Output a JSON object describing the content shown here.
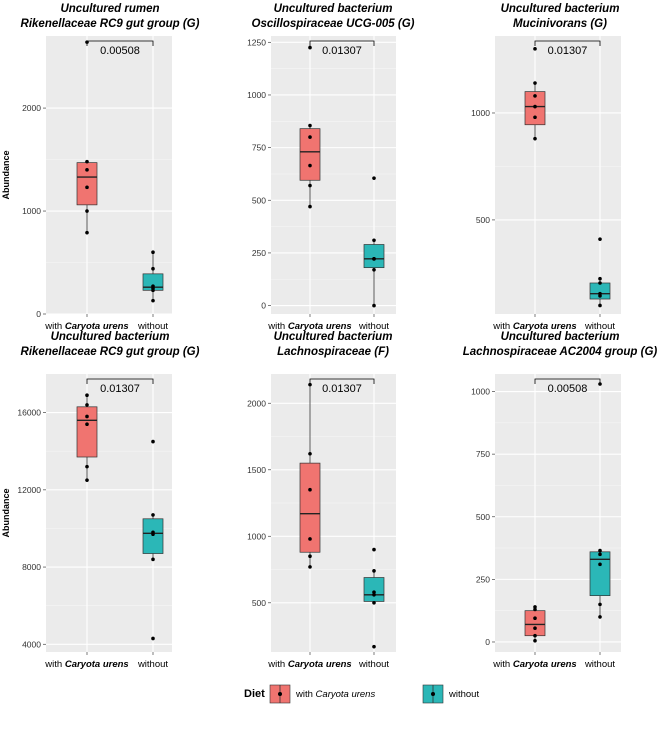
{
  "legend": {
    "title": "Diet",
    "items": [
      {
        "prefix": "with ",
        "italic": "Caryota urens",
        "color": "#f07470"
      },
      {
        "prefix": "without",
        "italic": "",
        "color": "#2bb7b7"
      }
    ]
  },
  "chart_data": [
    {
      "type": "box",
      "title_lines": [
        "Uncultured rumen",
        "Rikenellaceae RC9 gut group (G)"
      ],
      "ylabel": "Abundance",
      "ylim": [
        0,
        2700
      ],
      "yticks": [
        0,
        1000,
        2000
      ],
      "categories": [
        "with Caryota urens",
        "without"
      ],
      "pvalue": "0.00508",
      "boxes": [
        {
          "group": "with Caryota urens",
          "min": 790,
          "q1": 1060,
          "median": 1330,
          "q3": 1470,
          "max": 1480,
          "points": [
            2640,
            1480,
            1400,
            1230,
            1000,
            790
          ]
        },
        {
          "group": "without",
          "min": 130,
          "q1": 230,
          "median": 260,
          "q3": 390,
          "max": 600,
          "points": [
            600,
            440,
            270,
            250,
            230,
            130
          ]
        }
      ]
    },
    {
      "type": "box",
      "title_lines": [
        "Uncultured bacterium",
        "Oscillospiraceae UCG-005 (G)"
      ],
      "ylabel": "",
      "ylim": [
        -40,
        1280
      ],
      "yticks": [
        0,
        250,
        500,
        750,
        1000,
        1250
      ],
      "categories": [
        "with Caryota urens",
        "without"
      ],
      "pvalue": "0.01307",
      "boxes": [
        {
          "group": "with Caryota urens",
          "min": 470,
          "q1": 595,
          "median": 730,
          "q3": 840,
          "max": 855,
          "points": [
            1225,
            855,
            800,
            665,
            570,
            470
          ]
        },
        {
          "group": "without",
          "min": 0,
          "q1": 180,
          "median": 222,
          "q3": 290,
          "max": 310,
          "points": [
            605,
            310,
            222,
            222,
            170,
            0
          ]
        }
      ]
    },
    {
      "type": "box",
      "title_lines": [
        "Uncultured bacterium",
        "Mucinivorans (G)"
      ],
      "ylabel": "",
      "ylim": [
        60,
        1360
      ],
      "yticks": [
        500,
        1000
      ],
      "categories": [
        "with Caryota urens",
        "without"
      ],
      "pvalue": "0.01307",
      "boxes": [
        {
          "group": "with Caryota urens",
          "min": 880,
          "q1": 945,
          "median": 1030,
          "q3": 1100,
          "max": 1140,
          "points": [
            1300,
            1140,
            1080,
            1030,
            980,
            880
          ]
        },
        {
          "group": "without",
          "min": 100,
          "q1": 130,
          "median": 155,
          "q3": 205,
          "max": 225,
          "points": [
            410,
            225,
            205,
            155,
            145,
            100
          ]
        }
      ]
    },
    {
      "type": "box",
      "title_lines": [
        "Uncultured bacterium",
        "Rikenellaceae RC9 gut group (G)"
      ],
      "ylabel": "Abundance",
      "ylim": [
        3600,
        18000
      ],
      "yticks": [
        4000,
        8000,
        12000,
        16000
      ],
      "categories": [
        "with Caryota urens",
        "without"
      ],
      "pvalue": "0.01307",
      "boxes": [
        {
          "group": "with Caryota urens",
          "min": 12500,
          "q1": 13700,
          "median": 15600,
          "q3": 16300,
          "max": 16900,
          "points": [
            16900,
            16400,
            15800,
            15400,
            13200,
            12500
          ]
        },
        {
          "group": "without",
          "min": 8400,
          "q1": 8700,
          "median": 9750,
          "q3": 10500,
          "max": 10700,
          "points": [
            14500,
            10700,
            9800,
            9700,
            8400,
            4300
          ]
        }
      ]
    },
    {
      "type": "box",
      "title_lines": [
        "Uncultured bacterium",
        "Lachnospiraceae (F)"
      ],
      "ylabel": "",
      "ylim": [
        130,
        2220
      ],
      "yticks": [
        500,
        1000,
        1500,
        2000
      ],
      "categories": [
        "with Caryota urens",
        "without"
      ],
      "pvalue": "0.01307",
      "boxes": [
        {
          "group": "with Caryota urens",
          "min": 770,
          "q1": 880,
          "median": 1170,
          "q3": 1550,
          "max": 2140,
          "points": [
            2140,
            1620,
            1350,
            980,
            850,
            770
          ]
        },
        {
          "group": "without",
          "min": 500,
          "q1": 510,
          "median": 560,
          "q3": 690,
          "max": 740,
          "points": [
            900,
            740,
            580,
            560,
            500,
            170
          ]
        }
      ]
    },
    {
      "type": "box",
      "title_lines": [
        "Uncultured bacterium",
        "Lachnospiraceae AC2004 group (G)"
      ],
      "ylabel": "",
      "ylim": [
        -40,
        1070
      ],
      "yticks": [
        0,
        250,
        500,
        750,
        1000
      ],
      "categories": [
        "with Caryota urens",
        "without"
      ],
      "pvalue": "0.00508",
      "boxes": [
        {
          "group": "with Caryota urens",
          "min": 5,
          "q1": 25,
          "median": 70,
          "q3": 125,
          "max": 140,
          "points": [
            140,
            130,
            95,
            55,
            25,
            5
          ]
        },
        {
          "group": "without",
          "min": 100,
          "q1": 185,
          "median": 330,
          "q3": 360,
          "max": 365,
          "points": [
            1030,
            365,
            350,
            310,
            150,
            100
          ]
        }
      ]
    }
  ]
}
